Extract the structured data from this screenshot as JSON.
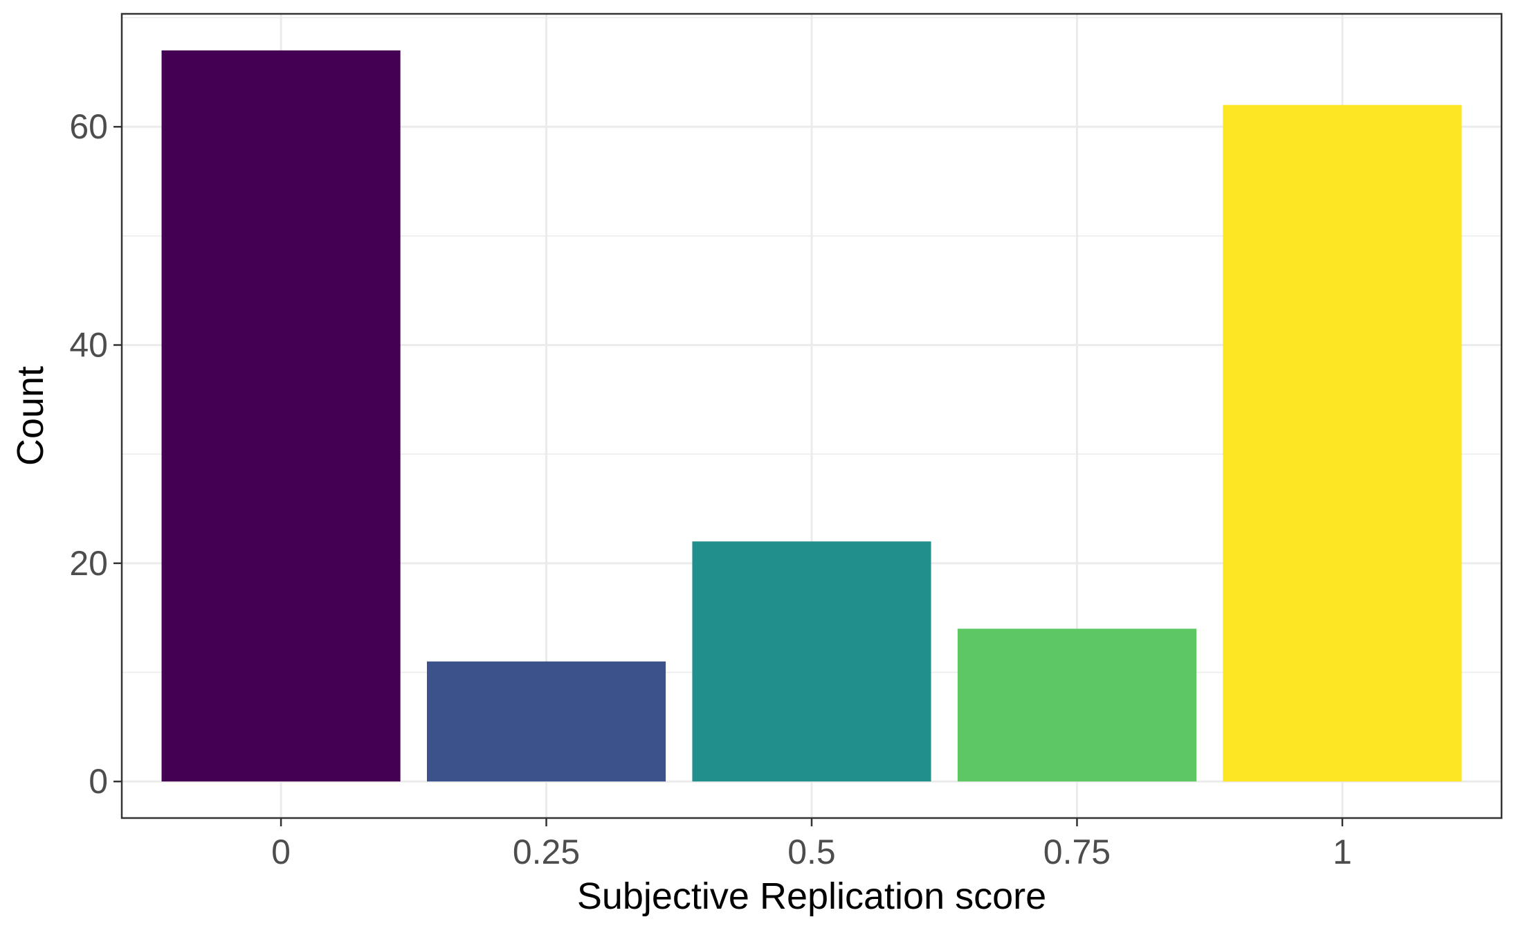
{
  "chart_data": {
    "type": "bar",
    "title": "",
    "xlabel": "Subjective Replication score",
    "ylabel": "Count",
    "categories": [
      "0",
      "0.25",
      "0.5",
      "0.75",
      "1"
    ],
    "values": [
      67,
      11,
      22,
      14,
      62
    ],
    "colors": [
      "#440154",
      "#3b528b",
      "#21908c",
      "#5dc863",
      "#fde725"
    ],
    "yticks": [
      0,
      20,
      40,
      60
    ],
    "ylim": [
      -3.35,
      70.35
    ],
    "grid": true,
    "legend": "none"
  }
}
